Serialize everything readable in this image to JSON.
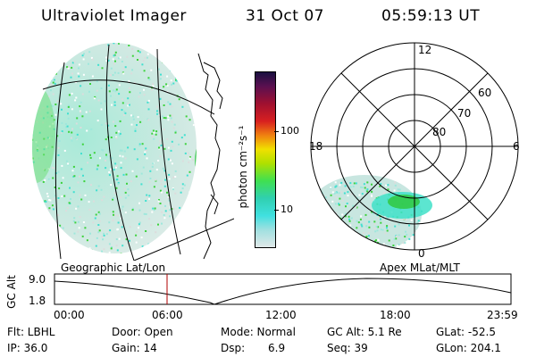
{
  "header": {
    "title": "Ultraviolet Imager",
    "date": "31 Oct 07",
    "time": "05:59:13 UT"
  },
  "colorbar": {
    "unit_label": "photon cm⁻²s⁻¹",
    "ticks": [
      "100",
      "10"
    ]
  },
  "polar": {
    "hour_labels": [
      "12",
      "18",
      "6",
      "0"
    ],
    "lat_labels": [
      "60",
      "70",
      "80"
    ]
  },
  "panel_titles": {
    "left": "Geographic Lat/Lon",
    "right": "Apex MLat/MLT"
  },
  "altitude_plot": {
    "ylabel": "GC Alt",
    "yticks": [
      "9.0",
      "1.8"
    ],
    "xticks": [
      "00:00",
      "06:00",
      "12:00",
      "18:00",
      "23:59"
    ]
  },
  "info": {
    "flt": "Flt: LBHL",
    "ip": "IP: 36.0",
    "door": "Door: Open",
    "gain": "Gain: 14",
    "mode": "Mode: Normal",
    "dsp_label": "Dsp:",
    "dsp_value": "6.9",
    "gcalt": "GC Alt: 5.1 Re",
    "seq": "Seq: 39",
    "glat": "GLat: -52.5",
    "glon": "GLon: 204.1"
  },
  "colors": {
    "emission_cyan": "#40e0d0",
    "emission_green": "#3cd23c",
    "background_noise": "#dcdcdc",
    "time_marker": "#b00000"
  }
}
